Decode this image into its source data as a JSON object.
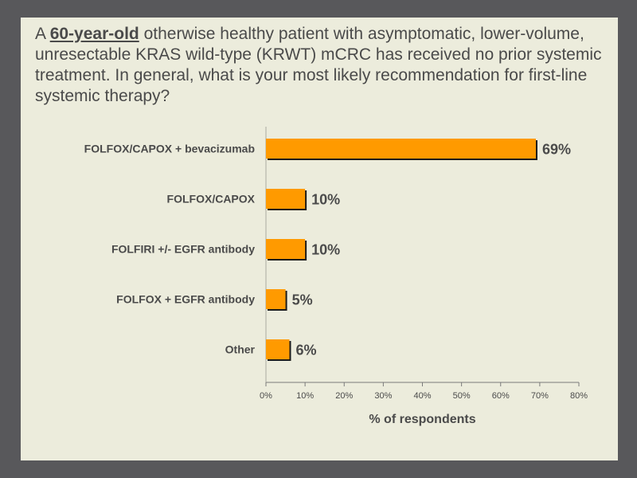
{
  "question": {
    "prefix": "A ",
    "emphasis": "60-year-old",
    "rest": " otherwise healthy patient with asymptomatic, lower-volume, unresectable KRAS wild-type (KRWT) mCRC has received no prior systemic treatment. In general, what is your most likely recommendation for first-line systemic therapy?"
  },
  "colors": {
    "page_background": "#58585b",
    "slide_background": "#ececdc",
    "bar_fill": "#ff9a00",
    "bar_shadow": "#1a1a1a",
    "text": "#4a4a4a"
  },
  "chart_data": {
    "type": "bar",
    "orientation": "horizontal",
    "categories": [
      "FOLFOX/CAPOX + bevacizumab",
      "FOLFOX/CAPOX",
      "FOLFIRI +/- EGFR antibody",
      "FOLFOX + EGFR antibody",
      "Other"
    ],
    "values": [
      69,
      10,
      10,
      5,
      6
    ],
    "value_labels": [
      "69%",
      "10%",
      "10%",
      "5%",
      "6%"
    ],
    "xlabel": "% of respondents",
    "ylabel": "",
    "xlim": [
      0,
      80
    ],
    "xticks": [
      "0%",
      "10%",
      "20%",
      "30%",
      "40%",
      "50%",
      "60%",
      "70%",
      "80%"
    ],
    "grid": false,
    "legend": "none"
  }
}
